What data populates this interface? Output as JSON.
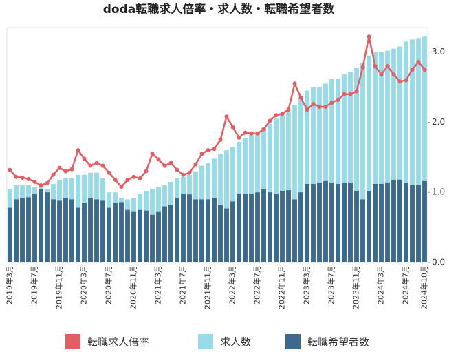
{
  "chart_data": {
    "type": "combo",
    "title": "doda転職求人倍率・求人数・転職希望者数",
    "categories": [
      "2019年3月",
      null,
      null,
      null,
      "2019年7月",
      null,
      null,
      null,
      "2019年11月",
      null,
      null,
      null,
      "2020年3月",
      null,
      null,
      null,
      "2020年7月",
      null,
      null,
      null,
      "2020年11月",
      null,
      null,
      null,
      "2021年3月",
      null,
      null,
      null,
      "2021年7月",
      null,
      null,
      null,
      "2021年11月",
      null,
      null,
      null,
      "2022年3月",
      null,
      null,
      null,
      "2022年7月",
      null,
      null,
      null,
      "2022年11月",
      null,
      null,
      null,
      "2023年3月",
      null,
      null,
      null,
      "2023年7月",
      null,
      null,
      null,
      "2023年11月",
      null,
      null,
      null,
      "2024年3月",
      null,
      null,
      null,
      "2024年7月",
      null,
      null,
      "2024年10月"
    ],
    "series": [
      {
        "name": "転職求人倍率",
        "type": "line",
        "color": "#e35d63",
        "values": [
          1.32,
          1.22,
          1.21,
          1.19,
          1.15,
          1.1,
          1.13,
          1.25,
          1.35,
          1.3,
          1.33,
          1.6,
          1.48,
          1.38,
          1.42,
          1.38,
          1.28,
          1.18,
          1.08,
          1.18,
          1.22,
          1.2,
          1.3,
          1.55,
          1.47,
          1.38,
          1.42,
          1.32,
          1.25,
          1.28,
          1.4,
          1.55,
          1.6,
          1.62,
          1.75,
          2.08,
          1.93,
          1.78,
          1.85,
          1.84,
          1.84,
          1.9,
          2.02,
          2.1,
          2.12,
          2.18,
          2.55,
          2.35,
          2.18,
          2.26,
          2.22,
          2.22,
          2.28,
          2.32,
          2.4,
          2.4,
          2.44,
          2.78,
          3.22,
          2.8,
          2.68,
          2.8,
          2.68,
          2.58,
          2.6,
          2.75,
          2.86,
          2.75
        ]
      },
      {
        "name": "求人数",
        "type": "bar",
        "color": "#97dbe8",
        "values": [
          1.05,
          1.1,
          1.1,
          1.1,
          1.08,
          1.08,
          1.05,
          1.12,
          1.18,
          1.2,
          1.2,
          1.25,
          1.25,
          1.28,
          1.28,
          1.2,
          1.0,
          1.0,
          0.92,
          0.9,
          0.92,
          0.98,
          1.02,
          1.05,
          1.08,
          1.1,
          1.15,
          1.2,
          1.22,
          1.25,
          1.3,
          1.38,
          1.42,
          1.48,
          1.55,
          1.6,
          1.65,
          1.72,
          1.78,
          1.82,
          1.85,
          1.92,
          1.98,
          2.05,
          2.1,
          2.15,
          2.25,
          2.35,
          2.45,
          2.5,
          2.5,
          2.55,
          2.62,
          2.62,
          2.68,
          2.72,
          2.78,
          2.85,
          2.95,
          3.0,
          3.0,
          3.02,
          3.05,
          3.08,
          3.15,
          3.18,
          3.2,
          3.23
        ]
      },
      {
        "name": "転職希望者数",
        "type": "bar",
        "color": "#3c6a8f",
        "values": [
          0.78,
          0.9,
          0.92,
          0.93,
          0.98,
          1.05,
          1.0,
          0.9,
          0.88,
          0.92,
          0.9,
          0.78,
          0.85,
          0.92,
          0.9,
          0.88,
          0.78,
          0.85,
          0.86,
          0.75,
          0.72,
          0.75,
          0.74,
          0.68,
          0.72,
          0.8,
          0.82,
          0.92,
          0.98,
          0.97,
          0.9,
          0.9,
          0.9,
          0.92,
          0.82,
          0.77,
          0.87,
          0.98,
          0.98,
          0.98,
          1.0,
          1.05,
          1.0,
          0.98,
          1.02,
          1.03,
          0.9,
          1.0,
          1.12,
          1.12,
          1.14,
          1.16,
          1.14,
          1.12,
          1.14,
          1.14,
          1.02,
          0.9,
          1.02,
          1.12,
          1.12,
          1.14,
          1.18,
          1.18,
          1.14,
          1.1,
          1.1,
          1.16
        ]
      }
    ],
    "ylim": [
      0,
      3.35
    ],
    "yticks": [
      {
        "value": 0,
        "label": "0.0"
      },
      {
        "value": 1,
        "label": "1.0"
      },
      {
        "value": 2,
        "label": "2.0"
      },
      {
        "value": 3,
        "label": "3.0"
      }
    ],
    "legend": "bottom"
  }
}
